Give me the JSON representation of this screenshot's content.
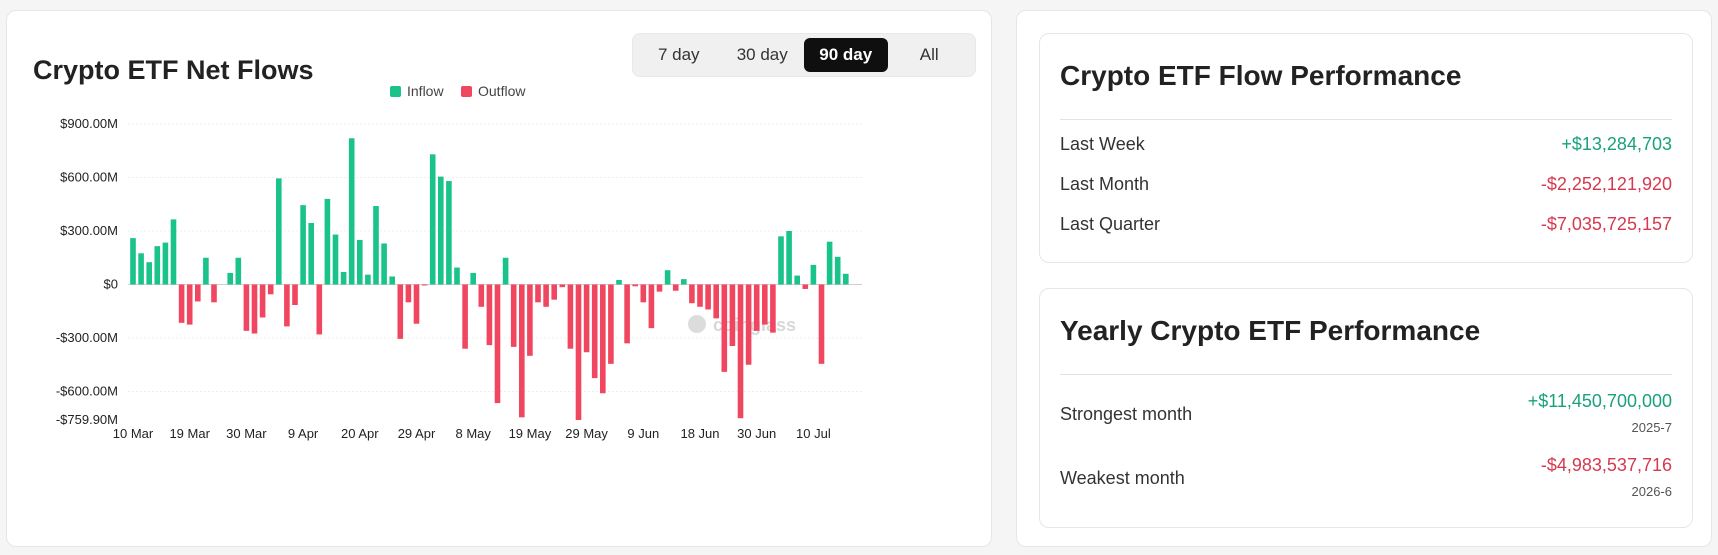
{
  "left": {
    "title": "Crypto ETF Net Flows",
    "tabs": [
      {
        "label": "7 day",
        "active": false
      },
      {
        "label": "30 day",
        "active": false
      },
      {
        "label": "90 day",
        "active": true
      },
      {
        "label": "All",
        "active": false
      }
    ],
    "watermark": "coinglass"
  },
  "chart_data": {
    "type": "bar",
    "legend": [
      {
        "name": "Inflow",
        "color": "#19c38a"
      },
      {
        "name": "Outflow",
        "color": "#f0465f"
      }
    ],
    "legend_position": "top-center",
    "y_ticks": [
      {
        "value": 900,
        "label": "$900.00M"
      },
      {
        "value": 600,
        "label": "$600.00M"
      },
      {
        "value": 300,
        "label": "$300.00M"
      },
      {
        "value": 0,
        "label": "$0"
      },
      {
        "value": -300,
        "label": "-$300.00M"
      },
      {
        "value": -600,
        "label": "-$600.00M"
      },
      {
        "value": -759.9,
        "label": "-$759.90M"
      }
    ],
    "ylim": [
      -759.9,
      900
    ],
    "x_ticks": [
      {
        "index": 0,
        "label": "10 Mar"
      },
      {
        "index": 7,
        "label": "19 Mar"
      },
      {
        "index": 14,
        "label": "30 Mar"
      },
      {
        "index": 21,
        "label": "9 Apr"
      },
      {
        "index": 28,
        "label": "20 Apr"
      },
      {
        "index": 35,
        "label": "29 Apr"
      },
      {
        "index": 42,
        "label": "8 May"
      },
      {
        "index": 49,
        "label": "19 May"
      },
      {
        "index": 56,
        "label": "29 May"
      },
      {
        "index": 63,
        "label": "9 Jun"
      },
      {
        "index": 70,
        "label": "18 Jun"
      },
      {
        "index": 77,
        "label": "30 Jun"
      },
      {
        "index": 84,
        "label": "10 Jul"
      }
    ],
    "grid": true,
    "values": [
      260,
      175,
      125,
      215,
      235,
      365,
      -215,
      -225,
      -95,
      150,
      -100,
      0,
      65,
      150,
      -260,
      -275,
      -185,
      -55,
      595,
      -235,
      -115,
      445,
      345,
      -280,
      480,
      280,
      70,
      820,
      250,
      55,
      440,
      230,
      45,
      -305,
      -100,
      -220,
      -5,
      730,
      605,
      580,
      95,
      -360,
      65,
      -125,
      -340,
      -665,
      150,
      -350,
      -745,
      -400,
      -100,
      -125,
      -85,
      -15,
      -360,
      -760,
      -380,
      -525,
      -610,
      -445,
      25,
      -330,
      -10,
      -100,
      -245,
      -40,
      80,
      -35,
      30,
      -105,
      -125,
      -140,
      -190,
      -490,
      -345,
      -750,
      -450,
      -260,
      -225,
      -270,
      270,
      300,
      50,
      -25,
      110,
      -445,
      240,
      155,
      60
    ]
  },
  "performance": {
    "title": "Crypto ETF Flow Performance",
    "rows": [
      {
        "label": "Last Week",
        "value": "+$13,284,703",
        "sign": "pos"
      },
      {
        "label": "Last Month",
        "value": "-$2,252,121,920",
        "sign": "neg"
      },
      {
        "label": "Last Quarter",
        "value": "-$7,035,725,157",
        "sign": "neg"
      }
    ]
  },
  "yearly": {
    "title": "Yearly Crypto ETF Performance",
    "strongest": {
      "label": "Strongest month",
      "value": "+$11,450,700,000",
      "date": "2025-7"
    },
    "weakest": {
      "label": "Weakest month",
      "value": "-$4,983,537,716",
      "date": "2026-6"
    }
  }
}
